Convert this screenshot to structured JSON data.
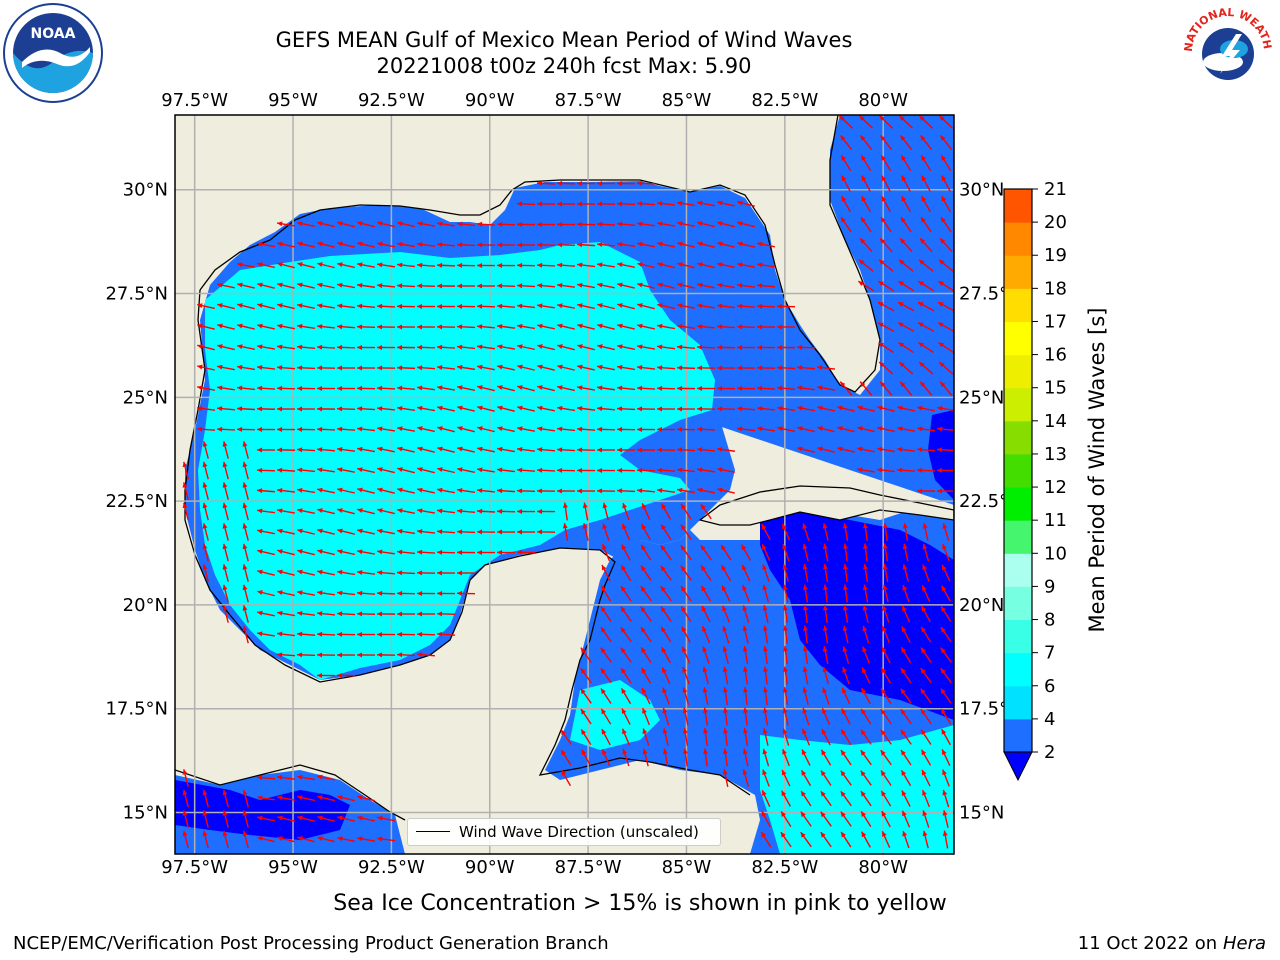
{
  "title": {
    "line1": "GEFS MEAN Gulf of Mexico Mean Period of Wind Waves",
    "line2": "20221008 t00z 240h fcst   Max: 5.90"
  },
  "axes": {
    "lon_ticks": [
      "97.5°W",
      "95°W",
      "92.5°W",
      "90°W",
      "87.5°W",
      "85°W",
      "82.5°W",
      "80°W"
    ],
    "lat_ticks_left": [
      "30°N",
      "27.5°N",
      "25°N",
      "22.5°N",
      "20°N",
      "17.5°N",
      "15°N"
    ],
    "lat_ticks_right": [
      "30°N",
      "27.5°",
      "25°N",
      "22.5°",
      "20°N",
      "17.5°",
      "15°N"
    ],
    "lon_range": [
      -98,
      -78.2
    ],
    "lat_range": [
      14,
      31.8
    ]
  },
  "legend": {
    "label": "Wind Wave Direction (unscaled)"
  },
  "colorbar": {
    "label": "Mean Period of Wind Waves [s]",
    "ticks": [
      "2",
      "4",
      "6",
      "7",
      "8",
      "9",
      "10",
      "11",
      "12",
      "13",
      "14",
      "15",
      "16",
      "17",
      "18",
      "19",
      "20",
      "21"
    ],
    "colors": [
      "#1e6eff",
      "#00e1ff",
      "#00ffff",
      "#38ffe6",
      "#76ffe1",
      "#aaffee",
      "#46f56e",
      "#00ee00",
      "#44dd00",
      "#88dd00",
      "#ccee00",
      "#eeee00",
      "#ffff00",
      "#ffdd00",
      "#ffaa00",
      "#ff8800",
      "#ff5500",
      "#ff2200",
      "#ff0000"
    ],
    "under_color": "#0000ff"
  },
  "caption": "Sea Ice Concentration > 15% is shown in pink to yellow",
  "credit": "NCEP/EMC/Verification Post Processing Product Generation Branch",
  "date": "11 Oct 2022 on ",
  "machine": "Hera",
  "logos": {
    "left_text": "NOAA",
    "right_text": "NATIONAL WEATHER SERVICE"
  },
  "colors": {
    "land": "#efedde",
    "cyan": "#00ffff",
    "medium_blue": "#1e6eff",
    "deep_blue": "#0000ff",
    "arrow": "#ff0000",
    "grid": "#b0b0b0"
  }
}
